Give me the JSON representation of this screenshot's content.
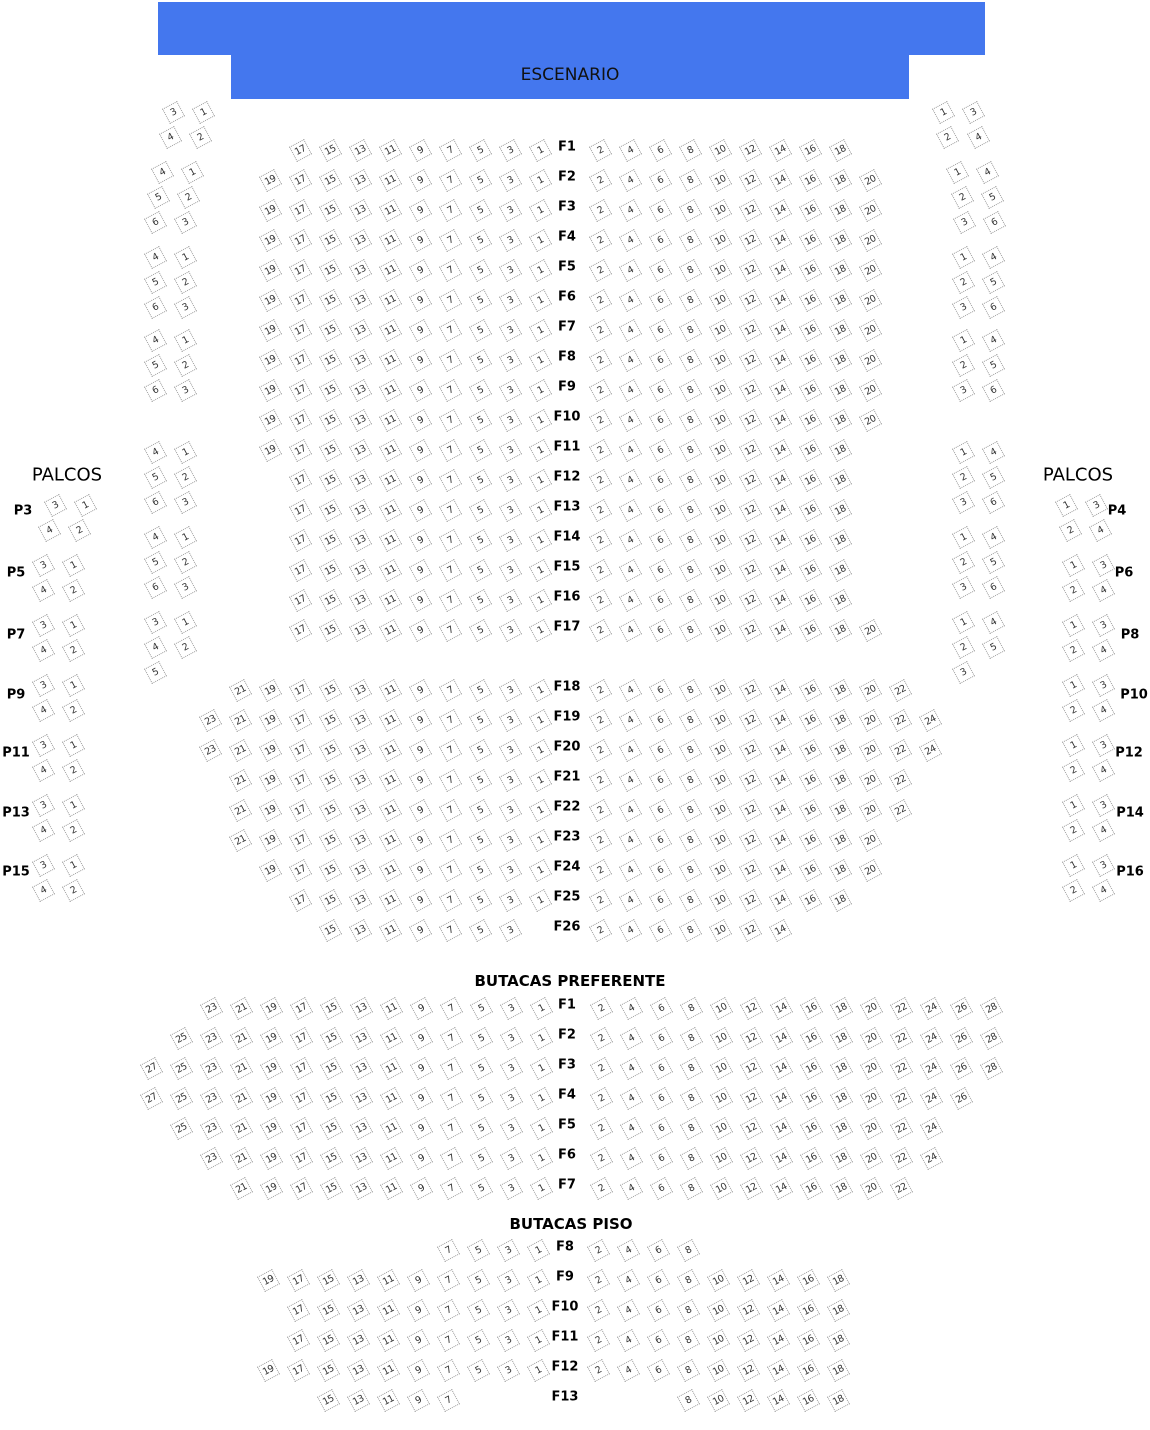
{
  "colors": {
    "stage": "#4477ee",
    "seat_border": "#9a9a9a"
  },
  "stage": {
    "label": "ESCENARIO"
  },
  "palcos_left_title": "PALCOS",
  "palcos_right_title": "PALCOS",
  "platea": {
    "rows": [
      {
        "label": "F1",
        "odd": [
          1,
          17
        ],
        "even": [
          2,
          18
        ]
      },
      {
        "label": "F2",
        "odd": [
          1,
          19
        ],
        "even": [
          2,
          20
        ]
      },
      {
        "label": "F3",
        "odd": [
          1,
          19
        ],
        "even": [
          2,
          20
        ]
      },
      {
        "label": "F4",
        "odd": [
          1,
          19
        ],
        "even": [
          2,
          20
        ]
      },
      {
        "label": "F5",
        "odd": [
          1,
          19
        ],
        "even": [
          2,
          20
        ]
      },
      {
        "label": "F6",
        "odd": [
          1,
          19
        ],
        "even": [
          2,
          20
        ]
      },
      {
        "label": "F7",
        "odd": [
          1,
          19
        ],
        "even": [
          2,
          20
        ]
      },
      {
        "label": "F8",
        "odd": [
          1,
          19
        ],
        "even": [
          2,
          20
        ]
      },
      {
        "label": "F9",
        "odd": [
          1,
          19
        ],
        "even": [
          2,
          20
        ]
      },
      {
        "label": "F10",
        "odd": [
          1,
          19
        ],
        "even": [
          2,
          20
        ]
      },
      {
        "label": "F11",
        "odd": [
          1,
          19
        ],
        "even": [
          2,
          18
        ]
      },
      {
        "label": "F12",
        "odd": [
          1,
          17
        ],
        "even": [
          2,
          18
        ]
      },
      {
        "label": "F13",
        "odd": [
          1,
          17
        ],
        "even": [
          2,
          18
        ]
      },
      {
        "label": "F14",
        "odd": [
          1,
          17
        ],
        "even": [
          2,
          18
        ]
      },
      {
        "label": "F15",
        "odd": [
          1,
          17
        ],
        "even": [
          2,
          18
        ]
      },
      {
        "label": "F16",
        "odd": [
          1,
          17
        ],
        "even": [
          2,
          18
        ]
      },
      {
        "label": "F17",
        "odd": [
          1,
          17
        ],
        "even": [
          2,
          20
        ]
      },
      {
        "label": "F18",
        "odd": [
          1,
          21
        ],
        "even": [
          2,
          22
        ]
      },
      {
        "label": "F19",
        "odd": [
          1,
          23
        ],
        "even": [
          2,
          24
        ]
      },
      {
        "label": "F20",
        "odd": [
          1,
          23
        ],
        "even": [
          2,
          24
        ]
      },
      {
        "label": "F21",
        "odd": [
          1,
          21
        ],
        "even": [
          2,
          22
        ]
      },
      {
        "label": "F22",
        "odd": [
          1,
          21
        ],
        "even": [
          2,
          22
        ]
      },
      {
        "label": "F23",
        "odd": [
          1,
          21
        ],
        "even": [
          2,
          20
        ]
      },
      {
        "label": "F24",
        "odd": [
          1,
          19
        ],
        "even": [
          2,
          20
        ]
      },
      {
        "label": "F25",
        "odd": [
          1,
          17
        ],
        "even": [
          2,
          18
        ]
      },
      {
        "label": "F26",
        "odd": [
          3,
          15
        ],
        "even": [
          2,
          14
        ]
      }
    ]
  },
  "preferente": {
    "title": "BUTACAS PREFERENTE",
    "rows": [
      {
        "label": "F1",
        "odd": [
          1,
          23
        ],
        "even": [
          2,
          28
        ]
      },
      {
        "label": "F2",
        "odd": [
          1,
          25
        ],
        "even": [
          2,
          28
        ]
      },
      {
        "label": "F3",
        "odd": [
          1,
          27
        ],
        "even": [
          2,
          28
        ]
      },
      {
        "label": "F4",
        "odd": [
          1,
          27
        ],
        "even": [
          2,
          26
        ]
      },
      {
        "label": "F5",
        "odd": [
          1,
          25
        ],
        "even": [
          2,
          24
        ]
      },
      {
        "label": "F6",
        "odd": [
          1,
          23
        ],
        "even": [
          2,
          24
        ]
      },
      {
        "label": "F7",
        "odd": [
          1,
          21
        ],
        "even": [
          2,
          22
        ]
      }
    ]
  },
  "piso": {
    "title": "BUTACAS PISO",
    "rows": [
      {
        "label": "F8",
        "odd": [
          1,
          7
        ],
        "even": [
          2,
          8
        ]
      },
      {
        "label": "F9",
        "odd": [
          1,
          19
        ],
        "even": [
          2,
          18
        ]
      },
      {
        "label": "F10",
        "odd": [
          1,
          17
        ],
        "even": [
          2,
          18
        ]
      },
      {
        "label": "F11",
        "odd": [
          1,
          17
        ],
        "even": [
          2,
          18
        ]
      },
      {
        "label": "F12",
        "odd": [
          1,
          19
        ],
        "even": [
          2,
          18
        ]
      },
      {
        "label": "F13",
        "odd": [
          7,
          15
        ],
        "even": [
          8,
          18
        ]
      }
    ]
  },
  "side_boxes_left": [
    [
      [
        "3",
        "1"
      ],
      [
        "4",
        "2"
      ]
    ],
    [
      [
        "4",
        "1"
      ],
      [
        "5",
        "2"
      ],
      [
        "6",
        "3"
      ]
    ],
    [
      [
        "4",
        "1"
      ],
      [
        "5",
        "2"
      ],
      [
        "6",
        "3"
      ]
    ],
    [
      [
        "4",
        "1"
      ],
      [
        "5",
        "2"
      ],
      [
        "6",
        "3"
      ]
    ],
    [
      [
        "4",
        "1"
      ],
      [
        "5",
        "2"
      ],
      [
        "6",
        "3"
      ]
    ],
    [
      [
        "4",
        "1"
      ],
      [
        "5",
        "2"
      ],
      [
        "6",
        "3"
      ]
    ],
    [
      [
        "3",
        "1"
      ],
      [
        "4",
        "2"
      ],
      [
        "5"
      ]
    ]
  ],
  "side_boxes_right": [
    [
      [
        "1",
        "3"
      ],
      [
        "2",
        "4"
      ]
    ],
    [
      [
        "1",
        "4"
      ],
      [
        "2",
        "5"
      ],
      [
        "3",
        "6"
      ]
    ],
    [
      [
        "1",
        "4"
      ],
      [
        "2",
        "5"
      ],
      [
        "3",
        "6"
      ]
    ],
    [
      [
        "1",
        "4"
      ],
      [
        "2",
        "5"
      ],
      [
        "3",
        "6"
      ]
    ],
    [
      [
        "1",
        "4"
      ],
      [
        "2",
        "5"
      ],
      [
        "3",
        "6"
      ]
    ],
    [
      [
        "1",
        "4"
      ],
      [
        "2",
        "5"
      ],
      [
        "3",
        "6"
      ]
    ],
    [
      [
        "1",
        "4"
      ],
      [
        "2",
        "5"
      ],
      [
        "3"
      ]
    ]
  ],
  "palcos_left": [
    {
      "label": "P3",
      "seats": [
        [
          "3",
          "1"
        ],
        [
          "4",
          "2"
        ]
      ]
    },
    {
      "label": "P5",
      "seats": [
        [
          "3",
          "1"
        ],
        [
          "4",
          "2"
        ]
      ]
    },
    {
      "label": "P7",
      "seats": [
        [
          "3",
          "1"
        ],
        [
          "4",
          "2"
        ]
      ]
    },
    {
      "label": "P9",
      "seats": [
        [
          "3",
          "1"
        ],
        [
          "4",
          "2"
        ]
      ]
    },
    {
      "label": "P11",
      "seats": [
        [
          "3",
          "1"
        ],
        [
          "4",
          "2"
        ]
      ]
    },
    {
      "label": "P13",
      "seats": [
        [
          "3",
          "1"
        ],
        [
          "4",
          "2"
        ]
      ]
    },
    {
      "label": "P15",
      "seats": [
        [
          "3",
          "1"
        ],
        [
          "4",
          "2"
        ]
      ]
    }
  ],
  "palcos_right": [
    {
      "label": "P4",
      "seats": [
        [
          "1",
          "3"
        ],
        [
          "2",
          "4"
        ]
      ]
    },
    {
      "label": "P6",
      "seats": [
        [
          "1",
          "3"
        ],
        [
          "2",
          "4"
        ]
      ]
    },
    {
      "label": "P8",
      "seats": [
        [
          "1",
          "3"
        ],
        [
          "2",
          "4"
        ]
      ]
    },
    {
      "label": "P10",
      "seats": [
        [
          "1",
          "3"
        ],
        [
          "2",
          "4"
        ]
      ]
    },
    {
      "label": "P12",
      "seats": [
        [
          "1",
          "3"
        ],
        [
          "2",
          "4"
        ]
      ]
    },
    {
      "label": "P14",
      "seats": [
        [
          "1",
          "3"
        ],
        [
          "2",
          "4"
        ]
      ]
    },
    {
      "label": "P16",
      "seats": [
        [
          "1",
          "3"
        ],
        [
          "2",
          "4"
        ]
      ]
    }
  ]
}
